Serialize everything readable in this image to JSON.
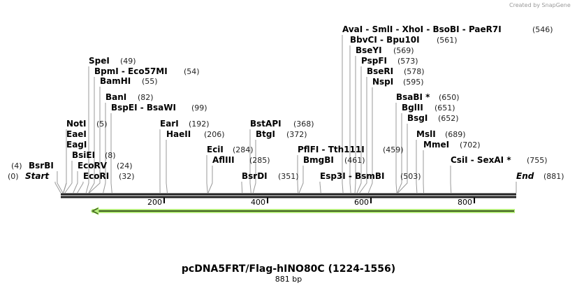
{
  "credit": "Created by SnapGene",
  "title": "pcDNA5FRT/Flag-hINO80C (1224-1556)",
  "length_label": "881 bp",
  "sequence_length": 881,
  "ticks": [
    {
      "value": 200,
      "label": "200"
    },
    {
      "value": 400,
      "label": "400"
    },
    {
      "value": 600,
      "label": "600"
    },
    {
      "value": 800,
      "label": "800"
    }
  ],
  "feature": {
    "start": 60,
    "end": 881,
    "direction": "reverse",
    "color": "#b5ec7c"
  },
  "sites": [
    {
      "name": "Start",
      "pos": 0,
      "num": "(0)",
      "italic": true
    },
    {
      "name": "BsrBI",
      "pos": 4,
      "num": "(4)"
    },
    {
      "name": "NotI",
      "pos": 5,
      "num": "(5)"
    },
    {
      "name": "EaeI",
      "pos": 5,
      "num": ""
    },
    {
      "name": "EagI",
      "pos": 5,
      "num": ""
    },
    {
      "name": "BsiEI",
      "pos": 8,
      "num": "(8)"
    },
    {
      "name": "EcoRV",
      "pos": 24,
      "num": "(24)"
    },
    {
      "name": "EcoRI",
      "pos": 32,
      "num": "(32)"
    },
    {
      "name": "SpeI",
      "pos": 49,
      "num": "(49)"
    },
    {
      "name": "BpmI  - Eco57MI",
      "pos": 54,
      "num": "(54)"
    },
    {
      "name": "BamHI",
      "pos": 55,
      "num": "(55)"
    },
    {
      "name": "BanI",
      "pos": 82,
      "num": "(82)"
    },
    {
      "name": "BspEI  - BsaWI",
      "pos": 99,
      "num": "(99)"
    },
    {
      "name": "EarI",
      "pos": 192,
      "num": "(192)"
    },
    {
      "name": "HaeII",
      "pos": 206,
      "num": "(206)"
    },
    {
      "name": "EciI",
      "pos": 284,
      "num": "(284)"
    },
    {
      "name": "AflIII",
      "pos": 285,
      "num": "(285)"
    },
    {
      "name": "BsrDI",
      "pos": 351,
      "num": "(351)"
    },
    {
      "name": "BstAPI",
      "pos": 368,
      "num": "(368)"
    },
    {
      "name": "BtgI",
      "pos": 372,
      "num": "(372)"
    },
    {
      "name": "PflFI  - Tth111I",
      "pos": 459,
      "num": "(459)"
    },
    {
      "name": "BmgBI",
      "pos": 461,
      "num": "(461)"
    },
    {
      "name": "Esp3I  - BsmBI",
      "pos": 503,
      "num": "(503)"
    },
    {
      "name": "AvaI  - SmlI  - XhoI  - BsoBI  - PaeR7I",
      "pos": 546,
      "num": "(546)"
    },
    {
      "name": "BbvCI  - Bpu10I",
      "pos": 561,
      "num": "(561)"
    },
    {
      "name": "BseYI",
      "pos": 569,
      "num": "(569)"
    },
    {
      "name": "PspFI",
      "pos": 573,
      "num": "(573)"
    },
    {
      "name": "BseRI",
      "pos": 578,
      "num": "(578)"
    },
    {
      "name": "NspI",
      "pos": 595,
      "num": "(595)"
    },
    {
      "name": "BsaBI *",
      "pos": 650,
      "num": "(650)"
    },
    {
      "name": "BglII",
      "pos": 651,
      "num": "(651)"
    },
    {
      "name": "BsgI",
      "pos": 652,
      "num": "(652)"
    },
    {
      "name": "MslI",
      "pos": 689,
      "num": "(689)"
    },
    {
      "name": "MmeI",
      "pos": 702,
      "num": "(702)"
    },
    {
      "name": "CsiI  - SexAI *",
      "pos": 755,
      "num": "(755)"
    },
    {
      "name": "End",
      "pos": 881,
      "num": "(881)",
      "italic": true
    }
  ]
}
